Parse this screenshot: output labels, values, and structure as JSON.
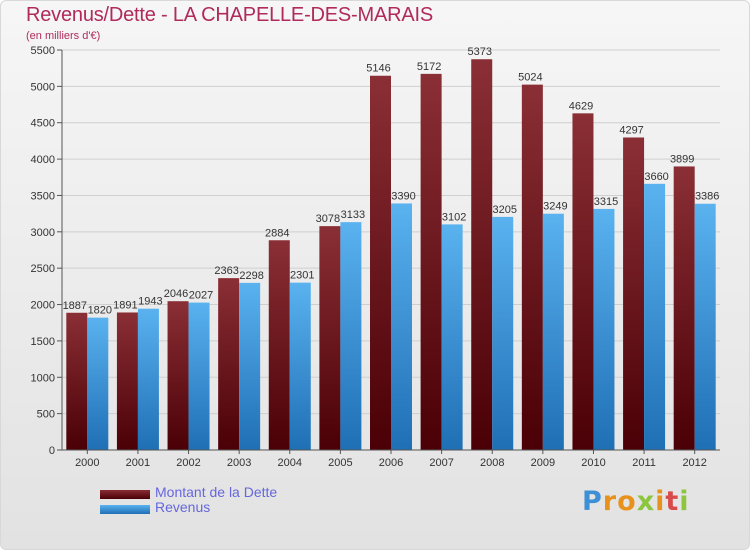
{
  "chart_data": {
    "type": "bar",
    "title": "Revenus/Dette - LA CHAPELLE-DES-MARAIS",
    "subtitle": "(en milliers d'€)",
    "categories": [
      "2000",
      "2001",
      "2002",
      "2003",
      "2004",
      "2005",
      "2006",
      "2007",
      "2008",
      "2009",
      "2010",
      "2011",
      "2012"
    ],
    "series": [
      {
        "name": "Montant de la Dette",
        "color": "#7a1c22",
        "values": [
          1887,
          1891,
          2046,
          2363,
          2884,
          3078,
          5146,
          5172,
          5373,
          5024,
          4629,
          4297,
          3899
        ],
        "labels": [
          "1887",
          "1891",
          "2046",
          "2363",
          "2884",
          "3078",
          "5146",
          "5172",
          "5373",
          "5024",
          "4629",
          "4297",
          "3899"
        ]
      },
      {
        "name": "Revenus",
        "color": "#3d9be0",
        "values": [
          1820,
          1943,
          2027,
          2298,
          2301,
          3133,
          3390,
          3102,
          3205,
          3249,
          3315,
          3660,
          3386
        ],
        "labels": [
          "1820",
          "1943",
          "2027",
          "2298",
          "2301",
          "3133",
          "3390",
          "3102",
          "3205",
          "3249",
          "3315",
          "3660",
          "3386"
        ]
      }
    ],
    "ylim": [
      0,
      5500
    ],
    "yticks": [
      0,
      500,
      1000,
      1500,
      2000,
      2500,
      3000,
      3500,
      4000,
      4500,
      5000,
      5500
    ],
    "ytick_labels": [
      "0",
      "500",
      "1000",
      "1500",
      "2000",
      "2500",
      "3000",
      "3500",
      "4000",
      "4500",
      "5000",
      "5500"
    ],
    "xlabel": "",
    "ylabel": "",
    "grid": true,
    "legend_position": "bottom-left"
  },
  "legend": {
    "dette_label": "Montant de la Dette",
    "revenus_label": "Revenus"
  },
  "logo": {
    "letters": [
      "P",
      "r",
      "o",
      "x",
      "i",
      "t",
      "i"
    ],
    "colors": [
      "#3d8fd6",
      "#e8921e",
      "#e8921e",
      "#8cc63f",
      "#e8921e",
      "#d94b4b",
      "#8cc63f"
    ]
  }
}
